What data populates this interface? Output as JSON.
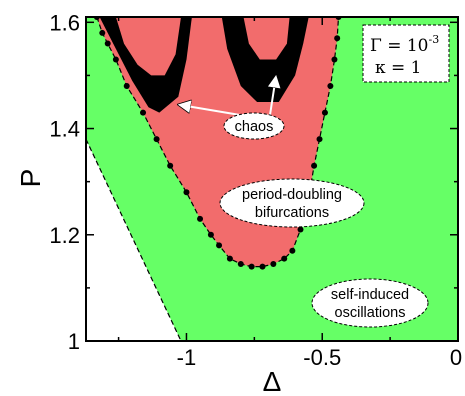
{
  "chart_data": {
    "type": "area",
    "xlabel": "Δ",
    "ylabel": "P",
    "xlim": [
      -1.37,
      0
    ],
    "ylim": [
      1.0,
      1.61
    ],
    "x_ticks": [
      {
        "value": -1,
        "label": "-1"
      },
      {
        "value": -0.5,
        "label": "-0.5"
      },
      {
        "value": 0,
        "label": "0"
      }
    ],
    "y_ticks": [
      {
        "value": 1.0,
        "label": "1"
      },
      {
        "value": 1.2,
        "label": "1.2"
      },
      {
        "value": 1.4,
        "label": "1.4"
      },
      {
        "value": 1.6,
        "label": "1.6"
      }
    ],
    "parameters": {
      "gamma_prefix": "Γ = 10",
      "gamma_exponent": "-3",
      "kappa": "κ = 1"
    },
    "regions": [
      {
        "label": "self-induced oscillations",
        "label_lines": [
          "self-induced",
          "oscillations"
        ],
        "color": "#66ff66",
        "boundary": [
          [
            -1.37,
            1.38
          ],
          [
            -1.02,
            1.0
          ]
        ]
      },
      {
        "label": "period-doubling bifurcations",
        "label_lines": [
          "period-doubling",
          "bifurcations"
        ],
        "color": "#f26c6c",
        "boundary": [
          [
            -1.33,
            1.61
          ],
          [
            -1.31,
            1.58
          ],
          [
            -1.29,
            1.56
          ],
          [
            -1.26,
            1.53
          ],
          [
            -1.22,
            1.48
          ],
          [
            -1.16,
            1.43
          ],
          [
            -1.11,
            1.38
          ],
          [
            -1.06,
            1.33
          ],
          [
            -1.0,
            1.28
          ],
          [
            -0.95,
            1.23
          ],
          [
            -0.91,
            1.2
          ],
          [
            -0.88,
            1.18
          ],
          [
            -0.84,
            1.155
          ],
          [
            -0.8,
            1.145
          ],
          [
            -0.76,
            1.14
          ],
          [
            -0.72,
            1.14
          ],
          [
            -0.68,
            1.145
          ],
          [
            -0.64,
            1.155
          ],
          [
            -0.61,
            1.17
          ],
          [
            -0.58,
            1.21
          ],
          [
            -0.55,
            1.27
          ],
          [
            -0.53,
            1.33
          ],
          [
            -0.51,
            1.38
          ],
          [
            -0.49,
            1.43
          ],
          [
            -0.47,
            1.48
          ],
          [
            -0.455,
            1.53
          ],
          [
            -0.445,
            1.57
          ],
          [
            -0.44,
            1.61
          ]
        ]
      },
      {
        "label": "chaos",
        "label_lines": [
          "chaos"
        ],
        "color": "#000000",
        "patches": [
          [
            [
              -1.32,
              1.61
            ],
            [
              -1.27,
              1.56
            ],
            [
              -1.2,
              1.49
            ],
            [
              -1.14,
              1.44
            ],
            [
              -1.1,
              1.43
            ],
            [
              -1.03,
              1.46
            ],
            [
              -1.0,
              1.53
            ],
            [
              -0.98,
              1.61
            ]
          ],
          [
            [
              -0.87,
              1.61
            ],
            [
              -0.85,
              1.55
            ],
            [
              -0.8,
              1.48
            ],
            [
              -0.74,
              1.45
            ],
            [
              -0.66,
              1.45
            ],
            [
              -0.6,
              1.5
            ],
            [
              -0.57,
              1.56
            ],
            [
              -0.55,
              1.61
            ]
          ]
        ]
      }
    ],
    "annotations": [
      {
        "text": "chaos",
        "anchor": [
          -0.89,
          1.39
        ],
        "targets": [
          [
            -1.03,
            1.445
          ],
          [
            -0.67,
            1.5
          ]
        ]
      },
      {
        "text": "period-doubling bifurcations",
        "anchor": [
          -0.72,
          1.265
        ]
      },
      {
        "text": "self-induced oscillations",
        "anchor": [
          -0.3,
          1.08
        ]
      }
    ],
    "grid": false,
    "legend": "none"
  }
}
